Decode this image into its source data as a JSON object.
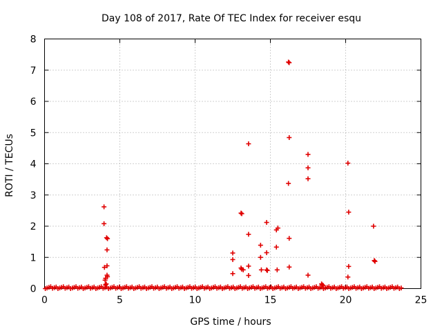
{
  "chart_data": {
    "type": "scatter",
    "title": "Day 108 of 2017, Rate Of TEC Index for receiver esqu",
    "xlabel": "GPS time / hours",
    "ylabel": "ROTI / TECUs",
    "xlim": [
      0,
      25
    ],
    "ylim": [
      0,
      8
    ],
    "xticks": [
      0,
      5,
      10,
      15,
      20,
      25
    ],
    "yticks": [
      0,
      1,
      2,
      3,
      4,
      5,
      6,
      7,
      8
    ],
    "grid": true,
    "marker": "plus",
    "color": "#e00000",
    "baseline": {
      "x_start": 0.05,
      "x_end": 23.7,
      "step": 0.12,
      "y_min": 0.0,
      "y_max": 0.06
    },
    "series": [
      {
        "name": "ROTI",
        "points": [
          [
            3.95,
            2.62
          ],
          [
            3.95,
            2.08
          ],
          [
            3.98,
            0.68
          ],
          [
            4.02,
            0.27
          ],
          [
            4.05,
            0.33
          ],
          [
            4.12,
            1.63
          ],
          [
            4.18,
            1.6
          ],
          [
            4.15,
            1.24
          ],
          [
            4.15,
            0.73
          ],
          [
            4.15,
            0.43
          ],
          [
            4.18,
            0.38
          ],
          [
            4.1,
            0.15
          ],
          [
            4.05,
            0.12
          ],
          [
            12.5,
            1.14
          ],
          [
            12.5,
            0.93
          ],
          [
            12.5,
            0.48
          ],
          [
            13.05,
            2.42
          ],
          [
            13.1,
            2.4
          ],
          [
            13.05,
            0.66
          ],
          [
            13.1,
            0.62
          ],
          [
            13.2,
            0.6
          ],
          [
            13.55,
            4.64
          ],
          [
            13.55,
            1.74
          ],
          [
            13.55,
            0.72
          ],
          [
            13.55,
            0.42
          ],
          [
            14.35,
            1.39
          ],
          [
            14.35,
            1.0
          ],
          [
            14.4,
            0.6
          ],
          [
            14.75,
            2.12
          ],
          [
            14.75,
            1.15
          ],
          [
            14.75,
            0.6
          ],
          [
            14.8,
            0.58
          ],
          [
            15.4,
            1.88
          ],
          [
            15.5,
            1.94
          ],
          [
            15.4,
            1.33
          ],
          [
            15.45,
            0.6
          ],
          [
            16.2,
            7.26
          ],
          [
            16.25,
            7.24
          ],
          [
            16.25,
            4.84
          ],
          [
            16.2,
            3.37
          ],
          [
            16.25,
            1.61
          ],
          [
            16.25,
            0.69
          ],
          [
            17.5,
            4.3
          ],
          [
            17.5,
            3.87
          ],
          [
            17.5,
            3.52
          ],
          [
            17.5,
            0.43
          ],
          [
            18.4,
            0.15
          ],
          [
            18.45,
            0.12
          ],
          [
            18.5,
            0.1
          ],
          [
            20.15,
            4.02
          ],
          [
            20.2,
            2.45
          ],
          [
            20.2,
            0.71
          ],
          [
            20.15,
            0.37
          ],
          [
            21.85,
            2.0
          ],
          [
            21.9,
            0.9
          ],
          [
            21.95,
            0.87
          ]
        ]
      }
    ]
  }
}
